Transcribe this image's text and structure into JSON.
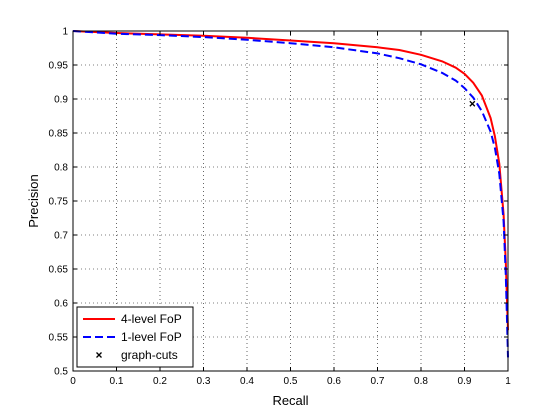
{
  "chart_data": {
    "type": "line",
    "title": "",
    "xlabel": "Recall",
    "ylabel": "Precision",
    "xlim": [
      0,
      1
    ],
    "ylim": [
      0.5,
      1
    ],
    "x_ticks": [
      "0",
      "0.1",
      "0.2",
      "0.3",
      "0.4",
      "0.5",
      "0.6",
      "0.7",
      "0.8",
      "0.9",
      "1"
    ],
    "y_ticks": [
      "0.5",
      "0.55",
      "0.6",
      "0.65",
      "0.7",
      "0.75",
      "0.8",
      "0.85",
      "0.9",
      "0.95",
      "1"
    ],
    "grid": true,
    "legend_position": "bottom-left",
    "series": [
      {
        "name": "4-level FoP",
        "color": "#ff0000",
        "style": "solid",
        "x": [
          0,
          0.1,
          0.2,
          0.3,
          0.4,
          0.5,
          0.6,
          0.7,
          0.75,
          0.8,
          0.85,
          0.88,
          0.9,
          0.92,
          0.94,
          0.96,
          0.97,
          0.98,
          0.99,
          0.995,
          0.998,
          1.0
        ],
        "y": [
          1.0,
          0.997,
          0.995,
          0.993,
          0.99,
          0.986,
          0.982,
          0.976,
          0.972,
          0.965,
          0.955,
          0.946,
          0.937,
          0.924,
          0.905,
          0.872,
          0.845,
          0.805,
          0.73,
          0.66,
          0.6,
          0.56
        ]
      },
      {
        "name": "1-level FoP",
        "color": "#0000ff",
        "style": "dashed",
        "x": [
          0,
          0.1,
          0.2,
          0.3,
          0.4,
          0.5,
          0.6,
          0.7,
          0.75,
          0.8,
          0.85,
          0.88,
          0.9,
          0.92,
          0.94,
          0.96,
          0.97,
          0.98,
          0.99,
          0.995,
          0.998,
          1.0
        ],
        "y": [
          1.0,
          0.996,
          0.994,
          0.991,
          0.987,
          0.982,
          0.976,
          0.967,
          0.96,
          0.951,
          0.938,
          0.927,
          0.916,
          0.902,
          0.882,
          0.852,
          0.828,
          0.79,
          0.72,
          0.64,
          0.57,
          0.52
        ]
      }
    ],
    "markers": [
      {
        "name": "graph-cuts",
        "symbol": "x",
        "color": "#000000",
        "x": 0.918,
        "y": 0.893
      }
    ]
  }
}
